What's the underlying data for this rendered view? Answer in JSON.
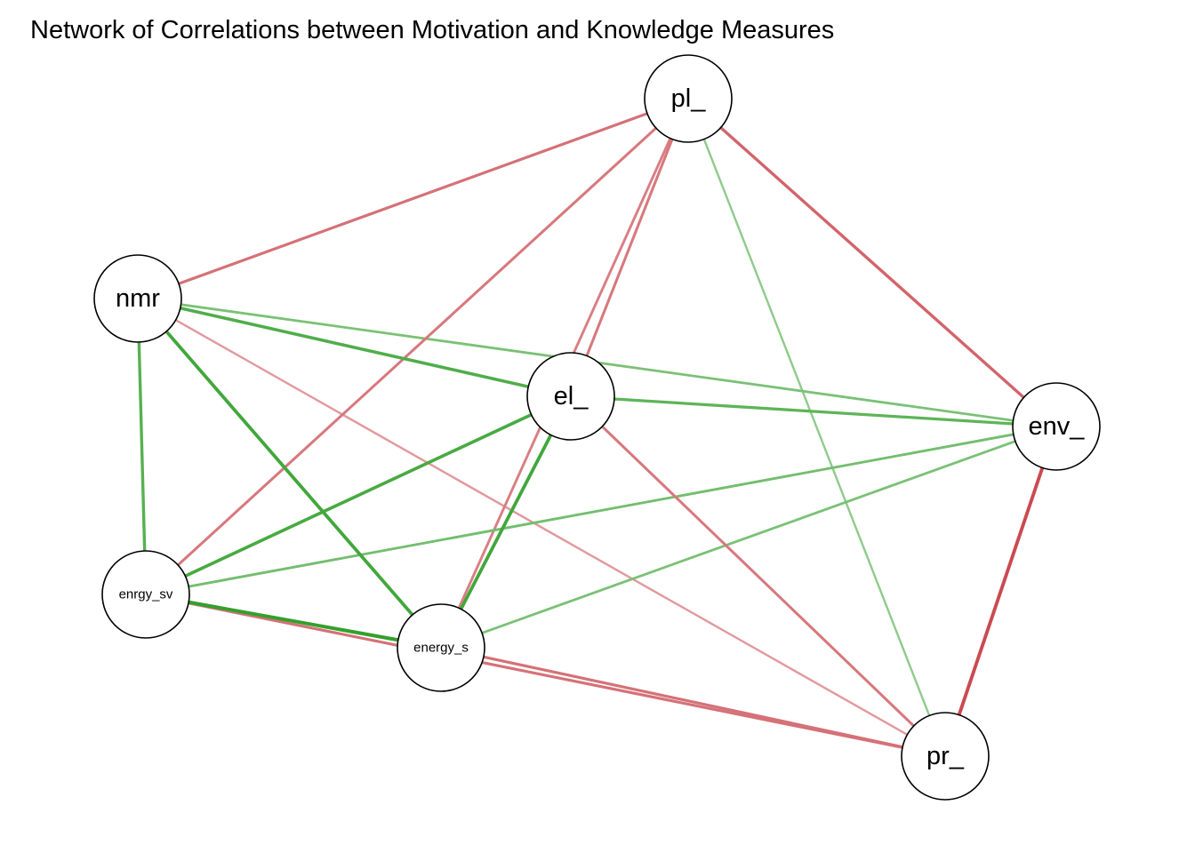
{
  "title": "Network of Correlations between Motivation and Knowledge Measures",
  "colors": {
    "positive": "#33a02c",
    "negative": "#c8434b"
  },
  "nodes": [
    {
      "id": "pl_",
      "label": "pl_"
    },
    {
      "id": "nmr",
      "label": "nmr"
    },
    {
      "id": "el_",
      "label": "el_"
    },
    {
      "id": "env_",
      "label": "env_"
    },
    {
      "id": "enrgy_sv",
      "label": "enrgy_sv"
    },
    {
      "id": "energy_s",
      "label": "energy_s"
    },
    {
      "id": "pr_",
      "label": "pr_"
    }
  ],
  "edges": [
    {
      "from": "pl_",
      "to": "nmr",
      "sign": "negative",
      "strength": 0.65
    },
    {
      "from": "pl_",
      "to": "enrgy_sv",
      "sign": "negative",
      "strength": 0.6
    },
    {
      "from": "pl_",
      "to": "el_",
      "sign": "negative",
      "strength": 0.6
    },
    {
      "from": "pl_",
      "to": "energy_s",
      "sign": "negative",
      "strength": 0.55
    },
    {
      "from": "pl_",
      "to": "pr_",
      "sign": "positive",
      "strength": 0.35
    },
    {
      "from": "pl_",
      "to": "env_",
      "sign": "negative",
      "strength": 0.75
    },
    {
      "from": "nmr",
      "to": "el_",
      "sign": "positive",
      "strength": 0.8
    },
    {
      "from": "nmr",
      "to": "env_",
      "sign": "positive",
      "strength": 0.5
    },
    {
      "from": "nmr",
      "to": "enrgy_sv",
      "sign": "positive",
      "strength": 0.75
    },
    {
      "from": "nmr",
      "to": "energy_s",
      "sign": "positive",
      "strength": 0.9
    },
    {
      "from": "nmr",
      "to": "pr_",
      "sign": "negative",
      "strength": 0.35
    },
    {
      "from": "el_",
      "to": "env_",
      "sign": "positive",
      "strength": 0.7
    },
    {
      "from": "el_",
      "to": "enrgy_sv",
      "sign": "positive",
      "strength": 0.85
    },
    {
      "from": "el_",
      "to": "energy_s",
      "sign": "positive",
      "strength": 0.9
    },
    {
      "from": "el_",
      "to": "pr_",
      "sign": "negative",
      "strength": 0.6
    },
    {
      "from": "env_",
      "to": "enrgy_sv",
      "sign": "positive",
      "strength": 0.55
    },
    {
      "from": "env_",
      "to": "energy_s",
      "sign": "positive",
      "strength": 0.5
    },
    {
      "from": "env_",
      "to": "pr_",
      "sign": "negative",
      "strength": 0.95
    },
    {
      "from": "enrgy_sv",
      "to": "energy_s",
      "sign": "positive",
      "strength": 1.0
    },
    {
      "from": "enrgy_sv",
      "to": "pr_",
      "sign": "negative",
      "strength": 0.65
    },
    {
      "from": "energy_s",
      "to": "pr_",
      "sign": "negative",
      "strength": 0.65
    }
  ]
}
